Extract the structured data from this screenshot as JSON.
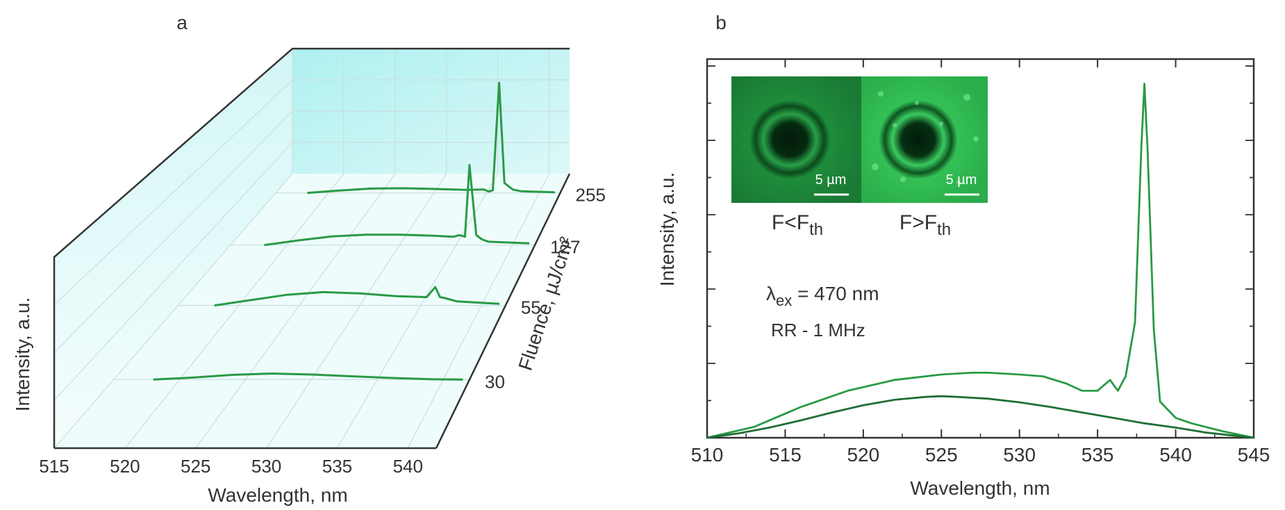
{
  "panels": {
    "a": "a",
    "b": "b"
  },
  "colors": {
    "curve": "#2a9a45",
    "curve_dark": "#1f6e35",
    "wall": "#bff3f3",
    "floor": "#f0fdfd",
    "frame": "#333333",
    "grid": "#c9dede"
  },
  "chart_data": [
    {
      "type": "line",
      "panel": "a",
      "title": "",
      "xlabel": "Wavelength, nm",
      "ylabel": "Intensity, a.u.",
      "zlabel": "Fluence, µJ/cm²",
      "x_ticks": [
        "515",
        "520",
        "525",
        "530",
        "535",
        "540"
      ],
      "xlim": [
        515,
        542
      ],
      "z_ticks": [
        "30",
        "55",
        "127",
        "255"
      ],
      "series": [
        {
          "name": "30",
          "x": [
            518,
            521,
            524,
            527,
            530,
            533,
            536,
            539,
            541.5
          ],
          "y": [
            0.0,
            0.06,
            0.14,
            0.18,
            0.15,
            0.1,
            0.05,
            0.01,
            0.0
          ]
        },
        {
          "name": "55",
          "x": [
            518,
            521,
            524,
            527,
            530,
            533,
            535.5,
            536.2,
            536.6,
            537,
            538,
            541.5
          ],
          "y": [
            0.0,
            0.16,
            0.32,
            0.4,
            0.36,
            0.28,
            0.25,
            0.55,
            0.25,
            0.22,
            0.12,
            0.05
          ]
        },
        {
          "name": "127",
          "x": [
            518,
            521,
            524,
            527,
            530,
            533,
            534.8,
            535.3,
            535.8,
            536.2,
            536.8,
            537.3,
            537.9,
            541.5
          ],
          "y": [
            0.0,
            0.14,
            0.26,
            0.31,
            0.31,
            0.28,
            0.25,
            0.3,
            0.25,
            2.4,
            0.3,
            0.17,
            0.1,
            0.05
          ]
        },
        {
          "name": "255",
          "x": [
            518,
            521,
            524,
            527,
            530,
            533,
            534.8,
            535.2,
            535.6,
            536.2,
            536.7,
            537.5,
            538.3,
            541.5
          ],
          "y": [
            0.0,
            0.07,
            0.13,
            0.14,
            0.12,
            0.09,
            0.1,
            0.04,
            0.08,
            3.3,
            0.3,
            0.1,
            0.05,
            0.02
          ]
        }
      ]
    },
    {
      "type": "line",
      "panel": "b",
      "title": "",
      "xlabel": "Wavelength, nm",
      "ylabel": "Intensity, a.u.",
      "xlim": [
        510,
        545
      ],
      "ylim": [
        0,
        1
      ],
      "x_ticks": [
        "510",
        "515",
        "520",
        "525",
        "530",
        "535",
        "540",
        "545"
      ],
      "annotations": {
        "excitation_prefix": "λ",
        "excitation_sub": "ex",
        "excitation_value": " = 470 nm",
        "rep_rate": "RR - 1 MHz",
        "inset_left_label_main": "F<F",
        "inset_left_label_sub": "th",
        "inset_right_label_main": "F>F",
        "inset_right_label_sub": "th",
        "scale_bar": "5 µm"
      },
      "series": [
        {
          "name": "F>Fth",
          "x": [
            510,
            513,
            516,
            519,
            522,
            525,
            527,
            528,
            530,
            531.5,
            533,
            534,
            535,
            535.8,
            536.3,
            536.8,
            537.4,
            537.8,
            538,
            538.2,
            538.6,
            539,
            540,
            541,
            543,
            545
          ],
          "y": [
            0.0,
            0.03,
            0.085,
            0.13,
            0.16,
            0.175,
            0.18,
            0.18,
            0.175,
            0.17,
            0.15,
            0.13,
            0.13,
            0.16,
            0.13,
            0.17,
            0.32,
            0.8,
            0.98,
            0.8,
            0.3,
            0.1,
            0.055,
            0.04,
            0.018,
            0.0
          ]
        },
        {
          "name": "F<Fth",
          "x": [
            510,
            512,
            514,
            516,
            518,
            520,
            522,
            524,
            525,
            526,
            528,
            530,
            532,
            534,
            536,
            538,
            540,
            542,
            545
          ],
          "y": [
            0.0,
            0.012,
            0.028,
            0.048,
            0.07,
            0.09,
            0.105,
            0.113,
            0.115,
            0.113,
            0.108,
            0.098,
            0.085,
            0.07,
            0.055,
            0.04,
            0.028,
            0.014,
            0.0
          ]
        }
      ]
    }
  ]
}
